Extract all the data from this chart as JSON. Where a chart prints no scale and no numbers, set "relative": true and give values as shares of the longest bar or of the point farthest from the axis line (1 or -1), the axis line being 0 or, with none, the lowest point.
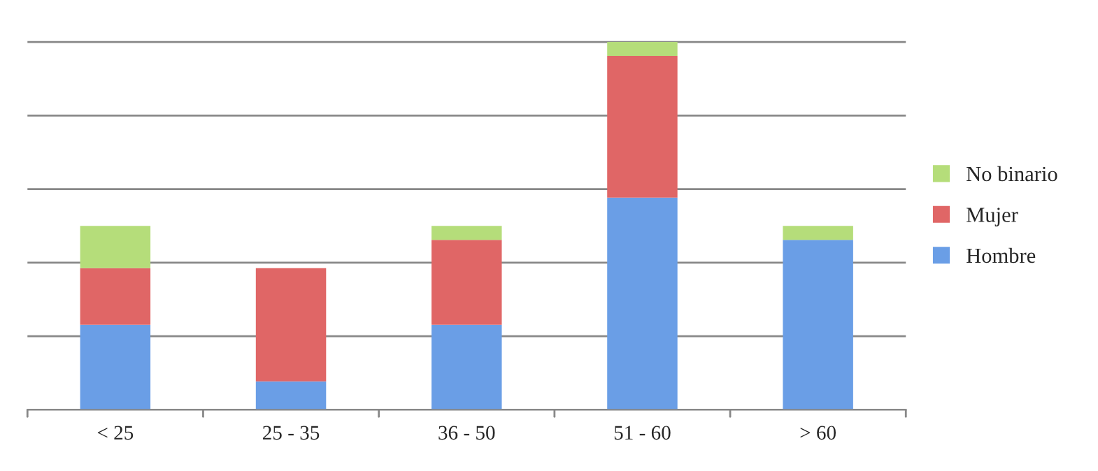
{
  "chart_data": {
    "type": "bar",
    "stacked": true,
    "relative": true,
    "grid": "y",
    "legend": "right",
    "categories": [
      "< 25",
      "25 - 35",
      "36 - 50",
      "51 - 60",
      "> 60"
    ],
    "series": [
      {
        "name": "Hombre",
        "color": "#6a9ee6",
        "values": [
          0.231,
          0.077,
          0.231,
          0.577,
          0.462
        ]
      },
      {
        "name": "Mujer",
        "color": "#e06666",
        "values": [
          0.154,
          0.308,
          0.231,
          0.385,
          0
        ]
      },
      {
        "name": "No binario",
        "color": "#b5dd7a",
        "values": [
          0.115,
          0,
          0.038,
          0.038,
          0.038
        ]
      }
    ]
  }
}
